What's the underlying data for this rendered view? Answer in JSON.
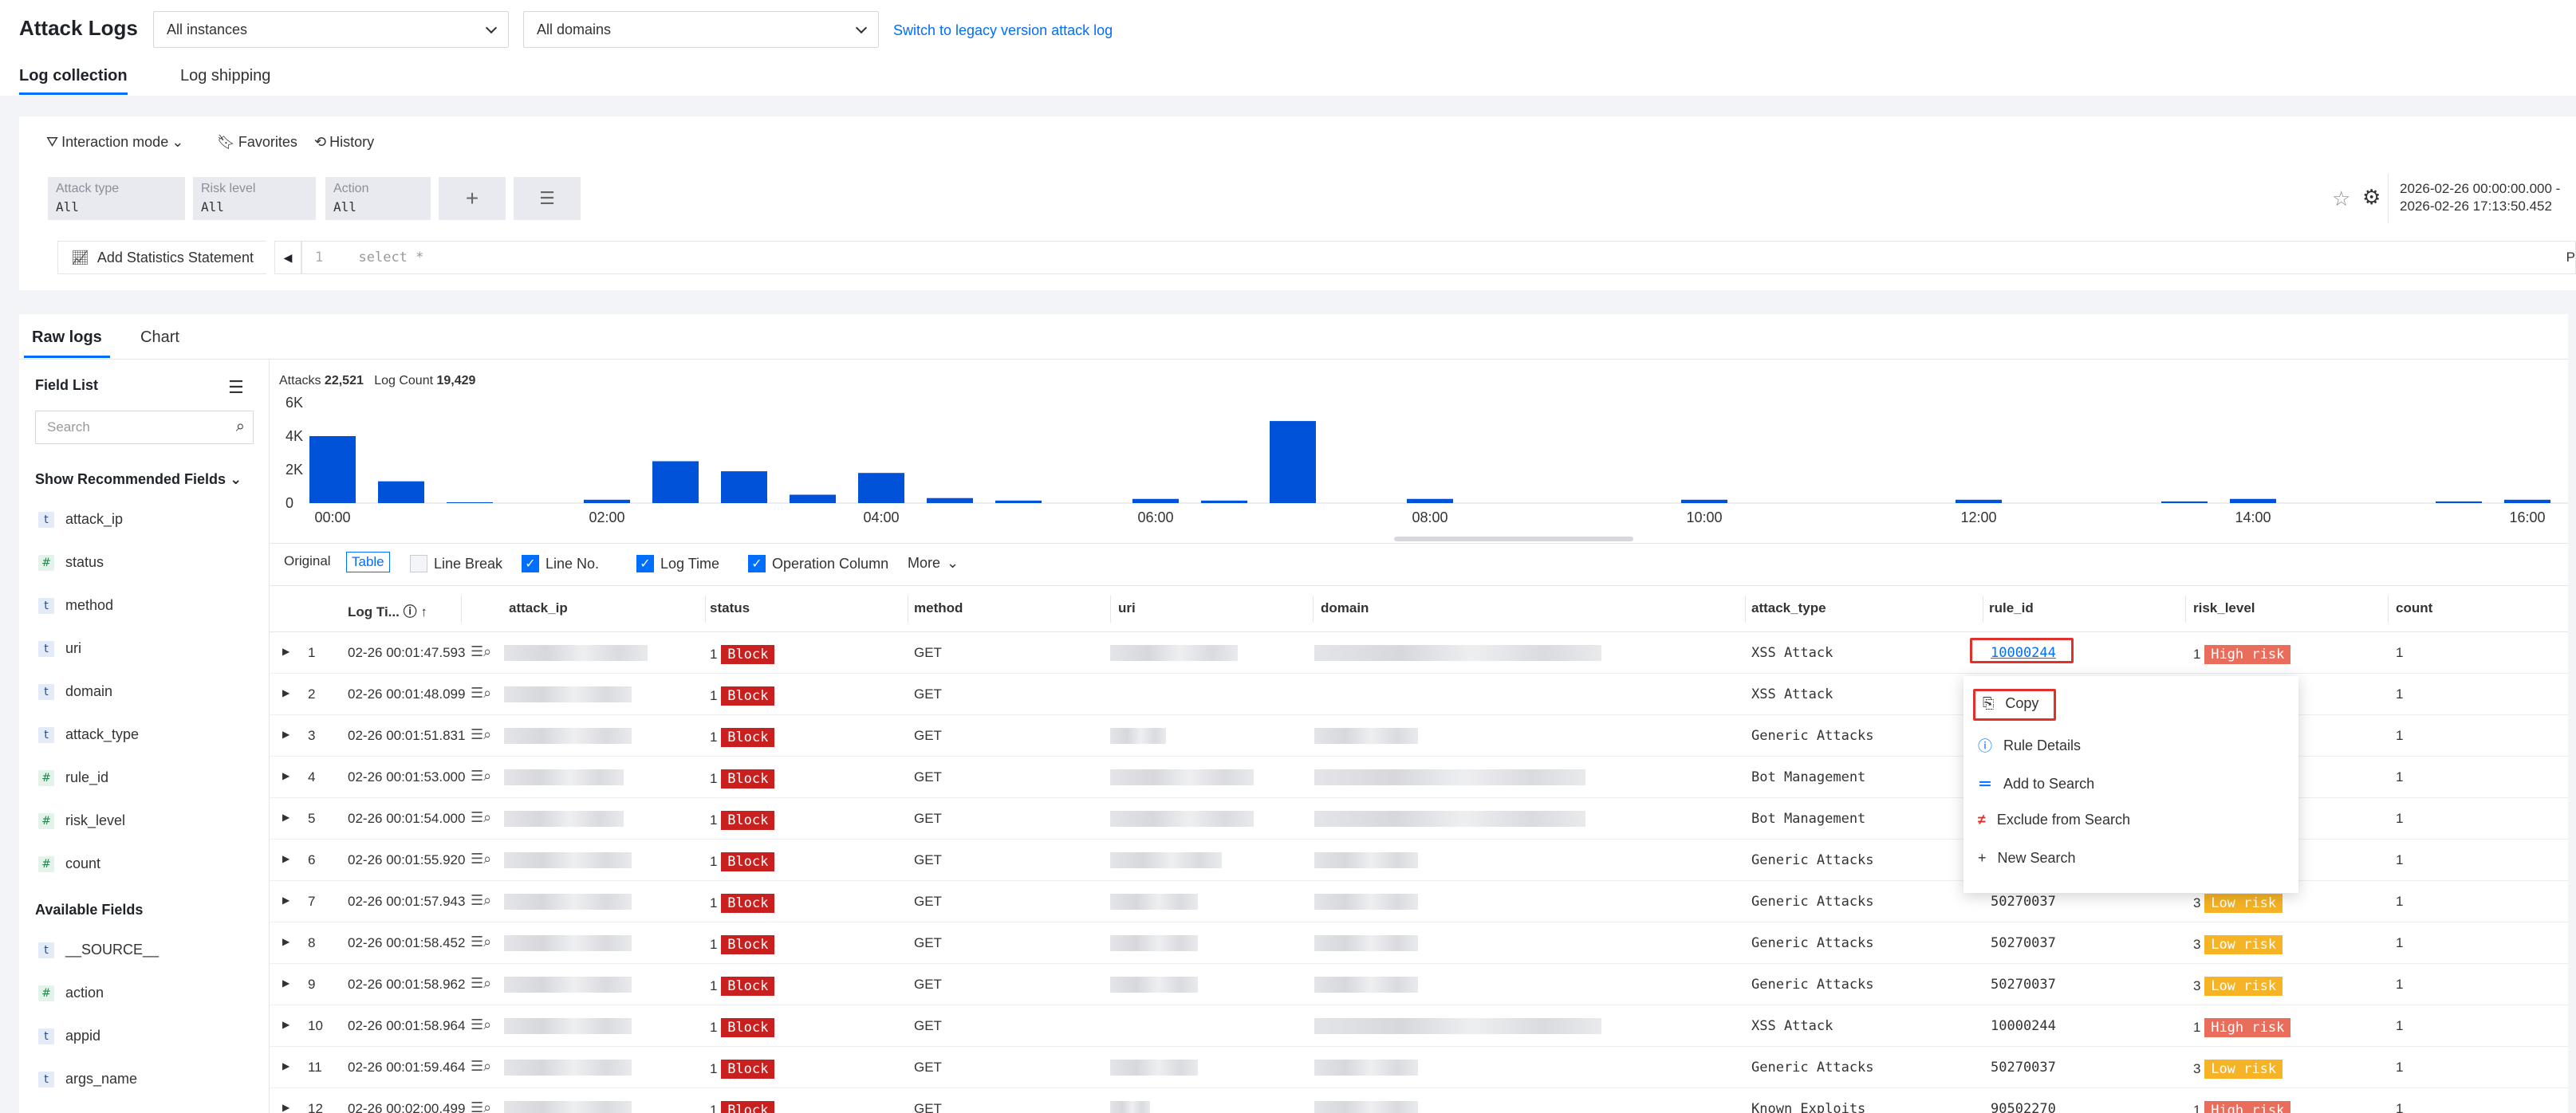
{
  "header": {
    "title": "Attack Logs",
    "instances_select": "All instances",
    "domains_select": "All domains",
    "legacy_link": "Switch to legacy version attack log",
    "tabs": [
      "Log collection",
      "Log shipping"
    ]
  },
  "search": {
    "toolbar": {
      "interaction_mode": "Interaction mode",
      "favorites": "Favorites",
      "history": "History"
    },
    "filters": [
      {
        "label": "Attack type",
        "value": "All"
      },
      {
        "label": "Risk level",
        "value": "All"
      },
      {
        "label": "Action",
        "value": "All"
      }
    ],
    "add_button": "+",
    "list_button": "☰",
    "time_range_start": "2026-02-26 00:00:00.000 -",
    "time_range_end": "2026-02-26 17:13:50.452",
    "add_statistics": "Add Statistics Statement",
    "query_line_no": "1",
    "query_text": "select *",
    "edge_cut": "P"
  },
  "results": {
    "tabs": [
      "Raw logs",
      "Chart"
    ],
    "field_list": {
      "title": "Field List",
      "search_placeholder": "Search",
      "recommended_title": "Show Recommended Fields",
      "recommended": [
        {
          "name": "attack_ip",
          "type": "t"
        },
        {
          "name": "status",
          "type": "#"
        },
        {
          "name": "method",
          "type": "t"
        },
        {
          "name": "uri",
          "type": "t"
        },
        {
          "name": "domain",
          "type": "t"
        },
        {
          "name": "attack_type",
          "type": "t"
        },
        {
          "name": "rule_id",
          "type": "#"
        },
        {
          "name": "risk_level",
          "type": "#"
        },
        {
          "name": "count",
          "type": "#"
        }
      ],
      "available_title": "Available Fields",
      "available": [
        {
          "name": "__SOURCE__",
          "type": "t"
        },
        {
          "name": "action",
          "type": "#"
        },
        {
          "name": "appid",
          "type": "t"
        },
        {
          "name": "args_name",
          "type": "t"
        }
      ]
    },
    "summary": {
      "attacks_label": "Attacks",
      "attacks_value": "22,521",
      "log_count_label": "Log Count",
      "log_count_value": "19,429"
    },
    "chart_data": {
      "type": "bar",
      "ylim": [
        0,
        6000
      ],
      "y_ticks": [
        "6K",
        "4K",
        "2K",
        "0"
      ],
      "x_ticks": [
        "00:00",
        "02:00",
        "04:00",
        "06:00",
        "08:00",
        "10:00",
        "12:00",
        "14:00",
        "16:00"
      ],
      "x_tick_slots": [
        0,
        4,
        8,
        12,
        16,
        20,
        24,
        28,
        32
      ],
      "values": [
        4000,
        1300,
        50,
        0,
        200,
        2500,
        1900,
        500,
        1800,
        300,
        150,
        0,
        250,
        150,
        4900,
        0,
        250,
        0,
        0,
        0,
        200,
        0,
        0,
        0,
        200,
        0,
        0,
        100,
        250,
        0,
        0,
        100,
        200
      ]
    },
    "controls": {
      "original": "Original",
      "table": "Table",
      "line_break": "Line Break",
      "line_no": "Line No.",
      "log_time": "Log Time",
      "operation_column": "Operation Column",
      "more": "More"
    },
    "columns": [
      "Log Ti...",
      "attack_ip",
      "status",
      "method",
      "uri",
      "domain",
      "attack_type",
      "rule_id",
      "risk_level",
      "count"
    ],
    "rows": [
      {
        "no": "1",
        "time": "02-26 00:01:47.593",
        "status": "1",
        "action": "Block",
        "method": "GET",
        "attack_type": "XSS Attack",
        "rule_id": "10000244",
        "risk_num": "1",
        "risk": "High risk",
        "count": "1"
      },
      {
        "no": "2",
        "time": "02-26 00:01:48.099",
        "status": "1",
        "action": "Block",
        "method": "GET",
        "attack_type": "XSS Attack",
        "rule_id": "",
        "risk_num": "",
        "risk": "",
        "count": "1"
      },
      {
        "no": "3",
        "time": "02-26 00:01:51.831",
        "status": "1",
        "action": "Block",
        "method": "GET",
        "attack_type": "Generic Attacks",
        "rule_id": "",
        "risk_num": "",
        "risk": "",
        "count": "1"
      },
      {
        "no": "4",
        "time": "02-26 00:01:53.000",
        "status": "1",
        "action": "Block",
        "method": "GET",
        "attack_type": "Bot Management",
        "rule_id": "",
        "risk_num": "",
        "risk": "",
        "count": "1"
      },
      {
        "no": "5",
        "time": "02-26 00:01:54.000",
        "status": "1",
        "action": "Block",
        "method": "GET",
        "attack_type": "Bot Management",
        "rule_id": "",
        "risk_num": "",
        "risk": "",
        "count": "1"
      },
      {
        "no": "6",
        "time": "02-26 00:01:55.920",
        "status": "1",
        "action": "Block",
        "method": "GET",
        "attack_type": "Generic Attacks",
        "rule_id": "",
        "risk_num": "",
        "risk": "",
        "count": "1"
      },
      {
        "no": "7",
        "time": "02-26 00:01:57.943",
        "status": "1",
        "action": "Block",
        "method": "GET",
        "attack_type": "Generic Attacks",
        "rule_id": "50270037",
        "risk_num": "3",
        "risk": "Low risk",
        "count": "1"
      },
      {
        "no": "8",
        "time": "02-26 00:01:58.452",
        "status": "1",
        "action": "Block",
        "method": "GET",
        "attack_type": "Generic Attacks",
        "rule_id": "50270037",
        "risk_num": "3",
        "risk": "Low risk",
        "count": "1"
      },
      {
        "no": "9",
        "time": "02-26 00:01:58.962",
        "status": "1",
        "action": "Block",
        "method": "GET",
        "attack_type": "Generic Attacks",
        "rule_id": "50270037",
        "risk_num": "3",
        "risk": "Low risk",
        "count": "1"
      },
      {
        "no": "10",
        "time": "02-26 00:01:58.964",
        "status": "1",
        "action": "Block",
        "method": "GET",
        "attack_type": "XSS Attack",
        "rule_id": "10000244",
        "risk_num": "1",
        "risk": "High risk",
        "count": "1"
      },
      {
        "no": "11",
        "time": "02-26 00:01:59.464",
        "status": "1",
        "action": "Block",
        "method": "GET",
        "attack_type": "Generic Attacks",
        "rule_id": "50270037",
        "risk_num": "3",
        "risk": "Low risk",
        "count": "1"
      },
      {
        "no": "12",
        "time": "02-26 00:02:00.499",
        "status": "1",
        "action": "Block",
        "method": "GET",
        "attack_type": "Known Exploits",
        "rule_id": "90502270",
        "risk_num": "1",
        "risk": "High risk",
        "count": "1"
      }
    ],
    "context_menu": [
      "Copy",
      "Rule Details",
      "Add to Search",
      "Exclude from Search",
      "New Search"
    ]
  },
  "colors": {
    "accent": "#006eff",
    "bar": "#0052d9",
    "block": "#c81f1f",
    "high_risk": "#ea6c5b",
    "low_risk": "#f5b325",
    "highlight": "#e0312a"
  }
}
